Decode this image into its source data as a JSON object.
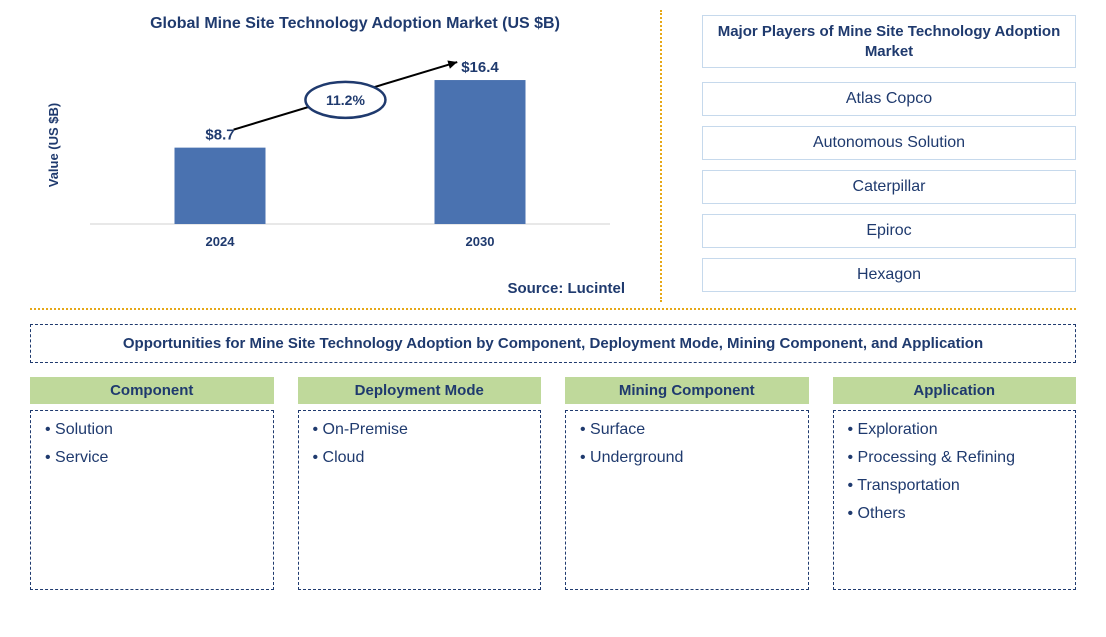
{
  "chart": {
    "title": "Global Mine Site Technology Adoption Market (US $B)",
    "y_axis_label": "Value (US $B)",
    "type": "bar",
    "categories": [
      "2024",
      "2030"
    ],
    "values": [
      8.7,
      16.4
    ],
    "value_labels": [
      "$8.7",
      "$16.4"
    ],
    "growth_label": "11.2%",
    "bar_color": "#4a72b0",
    "title_color": "#1f3a6e",
    "text_color": "#1f3a6e",
    "grid_color": "#d0d0d0",
    "ellipse_stroke": "#1f3a6e",
    "bar_width_ratio": 0.35,
    "ylim": [
      0,
      18
    ],
    "axis_font_size": 13,
    "label_font_size": 15,
    "title_font_size": 16
  },
  "source": "Source: Lucintel",
  "players": {
    "title": "Major Players of Mine Site Technology Adoption Market",
    "items": [
      "Atlas Copco",
      "Autonomous Solution",
      "Caterpillar",
      "Epiroc",
      "Hexagon"
    ]
  },
  "opportunities_title": "Opportunities for Mine Site Technology Adoption by Component, Deployment Mode, Mining Component, and Application",
  "categories": [
    {
      "header": "Component",
      "items": [
        "Solution",
        "Service"
      ]
    },
    {
      "header": "Deployment Mode",
      "items": [
        "On-Premise",
        "Cloud"
      ]
    },
    {
      "header": "Mining Component",
      "items": [
        "Surface",
        "Underground"
      ]
    },
    {
      "header": "Application",
      "items": [
        "Exploration",
        "Processing & Refining",
        "Transportation",
        "Others"
      ]
    }
  ],
  "styles": {
    "dashed_border_color": "#1f3a6e",
    "dotted_divider_color": "#e6a817",
    "player_border_color": "#c6d9ec",
    "cat_header_bg": "#bfd99b",
    "body_bg": "#ffffff"
  }
}
